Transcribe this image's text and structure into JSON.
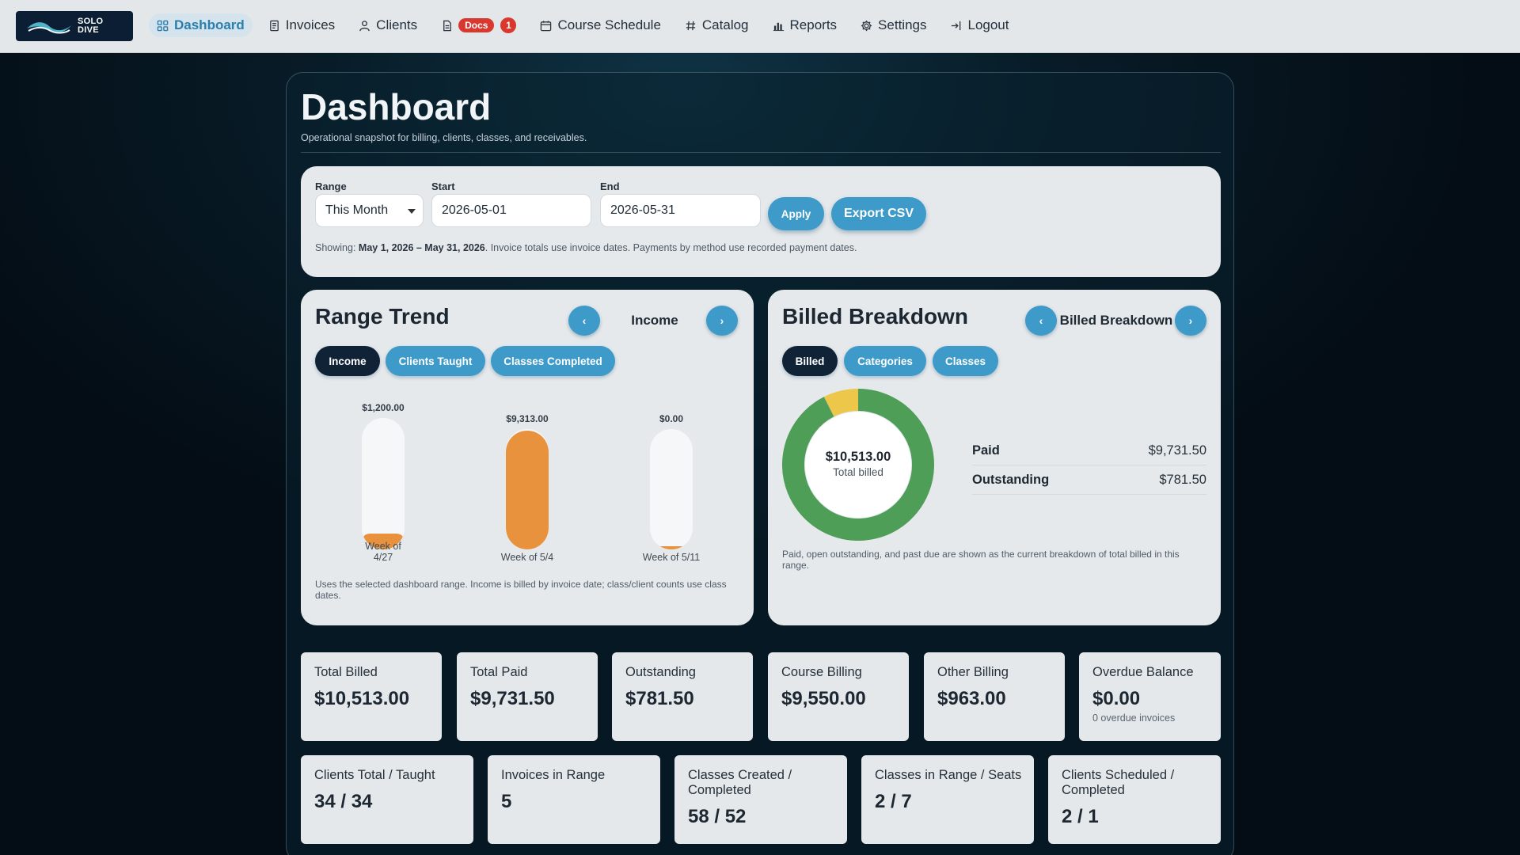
{
  "nav": {
    "logo_text_1": "SOLO",
    "logo_text_2": "DIVE",
    "items": [
      {
        "label": "Dashboard",
        "icon": "grid-icon"
      },
      {
        "label": "Invoices",
        "icon": "document-icon"
      },
      {
        "label": "Clients",
        "icon": "user-icon"
      },
      {
        "label": "Docs",
        "icon": "file-icon",
        "badge": "1"
      },
      {
        "label": "Course Schedule",
        "icon": "calendar-icon"
      },
      {
        "label": "Catalog",
        "icon": "hash-icon"
      },
      {
        "label": "Reports",
        "icon": "bar-chart-icon"
      },
      {
        "label": "Settings",
        "icon": "gear-icon"
      },
      {
        "label": "Logout",
        "icon": "logout-icon"
      }
    ],
    "active_color": "#2a7fae"
  },
  "page": {
    "title": "Dashboard",
    "subtitle": "Operational snapshot for billing, clients, classes, and receivables."
  },
  "filter": {
    "range_label": "Range",
    "range_value": "This Month",
    "start_label": "Start",
    "start_value": "2026-05-01",
    "end_label": "End",
    "end_value": "2026-05-31",
    "apply_label": "Apply",
    "export_label": "Export CSV",
    "showing_prefix": "Showing: ",
    "showing_range": "May 1, 2026 – May 31, 2026",
    "showing_suffix": ". Invoice totals use invoice dates. Payments by method use recorded payment dates."
  },
  "trend": {
    "title": "Range Trend",
    "prev_label": "‹",
    "next_label": "›",
    "mode": "Income",
    "tabs": [
      "Income",
      "Clients Taught",
      "Classes Completed"
    ],
    "active_tab": 0,
    "note": "Uses the selected dashboard range. Income is billed by invoice date; class/client counts use class dates.",
    "bar_color": "#e8923e"
  },
  "breakdown": {
    "title": "Billed Breakdown",
    "prev_label": "‹",
    "next_label": "›",
    "mode": "Billed Breakdown",
    "tabs": [
      "Billed",
      "Categories",
      "Classes"
    ],
    "active_tab": 0,
    "center_value": "$10,513.00",
    "center_label": "Total billed",
    "rows": [
      {
        "label": "Paid",
        "value": "$9,731.50"
      },
      {
        "label": "Outstanding",
        "value": "$781.50"
      }
    ],
    "note": "Paid, open outstanding, and past due are shown as the current breakdown of total billed in this range.",
    "colors": {
      "paid": "#4e9e58",
      "outstanding": "#ecc74a"
    }
  },
  "chart_data": [
    {
      "type": "bar",
      "title": "Range Trend",
      "categories": [
        "Week of 4/27",
        "Week of 5/4",
        "Week of 5/11"
      ],
      "value_labels": [
        "$1,200.00",
        "$9,313.00",
        "$0.00"
      ],
      "values": [
        1200,
        9313,
        0
      ]
    },
    {
      "type": "pie",
      "title": "Billed Breakdown",
      "categories": [
        "Paid",
        "Outstanding"
      ],
      "values": [
        9731.5,
        781.5
      ]
    }
  ],
  "stats_row1": [
    {
      "label": "Total Billed",
      "value": "$10,513.00"
    },
    {
      "label": "Total Paid",
      "value": "$9,731.50"
    },
    {
      "label": "Outstanding",
      "value": "$781.50"
    },
    {
      "label": "Course Billing",
      "value": "$9,550.00"
    },
    {
      "label": "Other Billing",
      "value": "$963.00"
    },
    {
      "label": "Overdue Balance",
      "value": "$0.00",
      "sub": "0 overdue invoices"
    }
  ],
  "stats_row2": [
    {
      "label": "Clients Total / Taught",
      "value": "34 / 34"
    },
    {
      "label": "Invoices in Range",
      "value": "5"
    },
    {
      "label": "Classes Created / Completed",
      "value": "58 / 52"
    },
    {
      "label": "Classes in Range / Seats",
      "value": "2 / 7"
    },
    {
      "label": "Clients Scheduled / Completed",
      "value": "2 / 1"
    }
  ]
}
